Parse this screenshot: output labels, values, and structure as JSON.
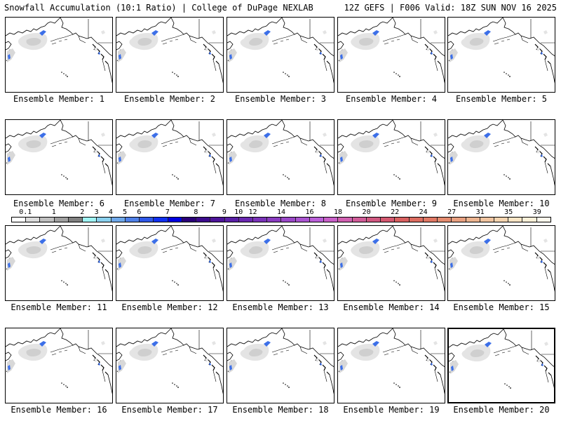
{
  "header": {
    "title_left": "Snowfall Accumulation (10:1 Ratio) | College of DuPage NEXLAB",
    "title_right": "12Z GEFS | F006 Valid: 18Z SUN NOV 16 2025"
  },
  "members": [
    {
      "label": "Ensemble Member: 1"
    },
    {
      "label": "Ensemble Member: 2"
    },
    {
      "label": "Ensemble Member: 3"
    },
    {
      "label": "Ensemble Member: 4"
    },
    {
      "label": "Ensemble Member: 5"
    },
    {
      "label": "Ensemble Member: 6"
    },
    {
      "label": "Ensemble Member: 7"
    },
    {
      "label": "Ensemble Member: 8"
    },
    {
      "label": "Ensemble Member: 9"
    },
    {
      "label": "Ensemble Member: 10"
    },
    {
      "label": "Ensemble Member: 11"
    },
    {
      "label": "Ensemble Member: 12"
    },
    {
      "label": "Ensemble Member: 13"
    },
    {
      "label": "Ensemble Member: 14"
    },
    {
      "label": "Ensemble Member: 15"
    },
    {
      "label": "Ensemble Member: 16"
    },
    {
      "label": "Ensemble Member: 17"
    },
    {
      "label": "Ensemble Member: 18"
    },
    {
      "label": "Ensemble Member: 19"
    },
    {
      "label": "Ensemble Member: 20"
    }
  ],
  "colorbar": {
    "labels": [
      "0.1",
      "1",
      "2",
      "3",
      "4",
      "5",
      "6",
      "7",
      "8",
      "9",
      "10",
      "12",
      "14",
      "16",
      "18",
      "20",
      "22",
      "24",
      "27",
      "31",
      "35",
      "39"
    ],
    "colors": [
      "#ffffff",
      "#dcdcdc",
      "#c0c0c0",
      "#a0a0a0",
      "#808080",
      "#9ff3f3",
      "#8ad0ee",
      "#6fa8ea",
      "#4f80e8",
      "#2f58e8",
      "#1030f0",
      "#0000e0",
      "#2a0078",
      "#3c0a8c",
      "#4d1499",
      "#5a1fa6",
      "#6a28b0",
      "#7a32b8",
      "#8a3cc0",
      "#9a48c8",
      "#aa54d0",
      "#ba60d8",
      "#c860c8",
      "#d060b0",
      "#d05c98",
      "#d05880",
      "#d45870",
      "#d86060",
      "#dc6c60",
      "#e07864",
      "#e48c70",
      "#e8a080",
      "#ecb490",
      "#f0c4a0",
      "#f4d4b0",
      "#f8e4c4",
      "#fbf0d8",
      "#fdf8ec"
    ]
  }
}
